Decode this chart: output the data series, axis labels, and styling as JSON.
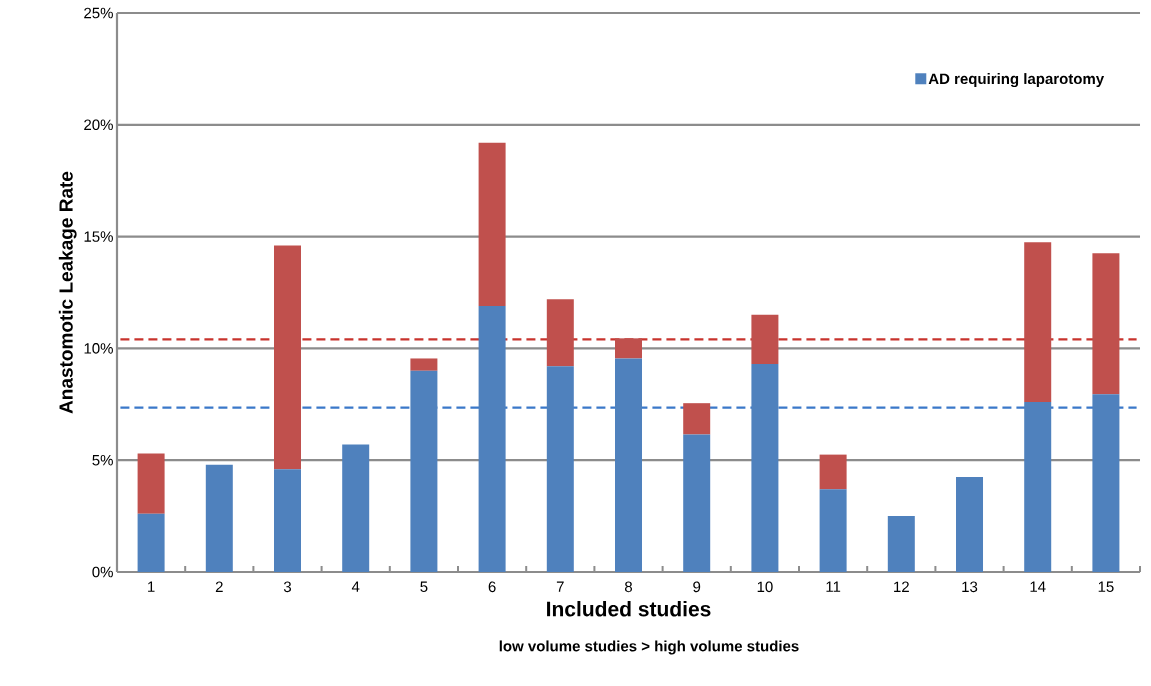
{
  "chart_data": {
    "type": "bar",
    "stacked": true,
    "xlabel": "Included studies",
    "ylabel": "Anastomotic Leakage Rate",
    "annotations": [
      "low volume studies  > high volume studies"
    ],
    "categories": [
      "1",
      "2",
      "3",
      "4",
      "5",
      "6",
      "7",
      "8",
      "9",
      "10",
      "11",
      "12",
      "13",
      "14",
      "15"
    ],
    "series": [
      {
        "name": "AD requiring laparotomy",
        "color": "#4f81bd",
        "values": [
          2.6,
          4.8,
          4.6,
          5.7,
          9.0,
          11.9,
          9.2,
          9.55,
          6.15,
          9.3,
          3.7,
          2.5,
          4.25,
          7.6,
          7.95
        ]
      },
      {
        "color": "#c0504d",
        "values": [
          2.7,
          null,
          10.0,
          null,
          0.55,
          7.3,
          3.0,
          0.9,
          1.4,
          2.2,
          1.55,
          null,
          null,
          7.15,
          6.3
        ]
      }
    ],
    "ylim": [
      0,
      25
    ],
    "yticks": [
      {
        "value": 0,
        "label": "0%"
      },
      {
        "value": 5,
        "label": "5%"
      },
      {
        "value": 10,
        "label": "10%"
      },
      {
        "value": 15,
        "label": "15%"
      },
      {
        "value": 20,
        "label": "20%"
      },
      {
        "value": 25,
        "label": "25%"
      }
    ],
    "grid": "y",
    "legend": "top right",
    "ref_lines": [
      {
        "axis": "y",
        "value": 10.4,
        "color": "#c8332d",
        "line_style": "dashed"
      },
      {
        "axis": "y",
        "value": 7.35,
        "color": "#3a78c9",
        "line_style": "dashed"
      }
    ]
  }
}
